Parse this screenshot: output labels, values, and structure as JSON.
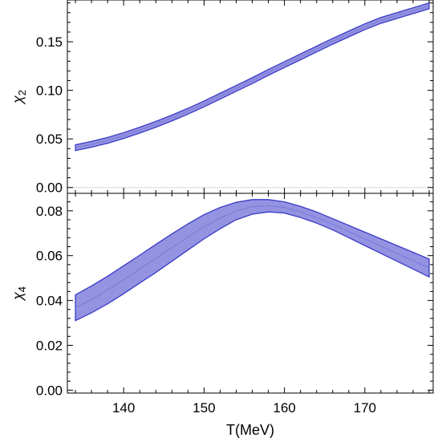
{
  "chart_data": [
    {
      "type": "area",
      "panel": "top",
      "xlabel": "",
      "ylabel": "χ2",
      "ylabel_main": "χ",
      "ylabel_sub": "2",
      "xlim": [
        133,
        178.5
      ],
      "ylim": [
        -0.006,
        0.193
      ],
      "xticks": [
        140,
        150,
        160,
        170
      ],
      "xtick_labels_shown": false,
      "yticks": [
        0.0,
        0.05,
        0.1,
        0.15
      ],
      "ytick_labels": [
        "0.00",
        "0.05",
        "0.10",
        "0.15"
      ],
      "grid": false,
      "fill_color": "#9393e1",
      "line_color": "#3b3bc7",
      "x": [
        134,
        136,
        138,
        140,
        142,
        144,
        146,
        148,
        150,
        152,
        154,
        156,
        158,
        160,
        162,
        164,
        166,
        168,
        170,
        172,
        174,
        176,
        178
      ],
      "upper": [
        0.044,
        0.0475,
        0.0515,
        0.0565,
        0.062,
        0.068,
        0.0745,
        0.0815,
        0.089,
        0.097,
        0.105,
        0.113,
        0.1215,
        0.1295,
        0.1375,
        0.1455,
        0.1535,
        0.161,
        0.1685,
        0.175,
        0.18,
        0.185,
        0.19
      ],
      "lower": [
        0.038,
        0.0415,
        0.0455,
        0.0505,
        0.056,
        0.062,
        0.0685,
        0.0755,
        0.083,
        0.091,
        0.099,
        0.107,
        0.1155,
        0.1235,
        0.1315,
        0.1395,
        0.1475,
        0.155,
        0.1625,
        0.169,
        0.174,
        0.179,
        0.184
      ]
    },
    {
      "type": "area",
      "panel": "bottom",
      "xlabel": "T(MeV)",
      "ylabel": "χ4",
      "ylabel_main": "χ",
      "ylabel_sub": "4",
      "xlim": [
        133,
        178.5
      ],
      "ylim": [
        -0.0013,
        0.0878
      ],
      "xticks": [
        140,
        150,
        160,
        170
      ],
      "xtick_labels": [
        "140",
        "150",
        "160",
        "170"
      ],
      "yticks": [
        0.0,
        0.02,
        0.04,
        0.06,
        0.08
      ],
      "ytick_labels": [
        "0.00",
        "0.02",
        "0.04",
        "0.06",
        "0.08"
      ],
      "grid": false,
      "fill_color": "#9393e1",
      "line_color": "#3b3bc7",
      "x": [
        134,
        136,
        138,
        140,
        142,
        144,
        146,
        148,
        150,
        152,
        154,
        156,
        158,
        160,
        162,
        164,
        166,
        168,
        170,
        172,
        174,
        176,
        178
      ],
      "upper": [
        0.0425,
        0.0465,
        0.0508,
        0.0555,
        0.0602,
        0.065,
        0.0697,
        0.0742,
        0.0783,
        0.0815,
        0.0838,
        0.085,
        0.085,
        0.084,
        0.082,
        0.0795,
        0.0765,
        0.0735,
        0.0705,
        0.0675,
        0.0645,
        0.0615,
        0.0585
      ],
      "lower": [
        0.031,
        0.0345,
        0.0385,
        0.043,
        0.0478,
        0.0525,
        0.0575,
        0.0625,
        0.0675,
        0.072,
        0.076,
        0.0785,
        0.0795,
        0.079,
        0.077,
        0.0745,
        0.0715,
        0.068,
        0.0645,
        0.061,
        0.0575,
        0.054,
        0.0505
      ]
    }
  ]
}
